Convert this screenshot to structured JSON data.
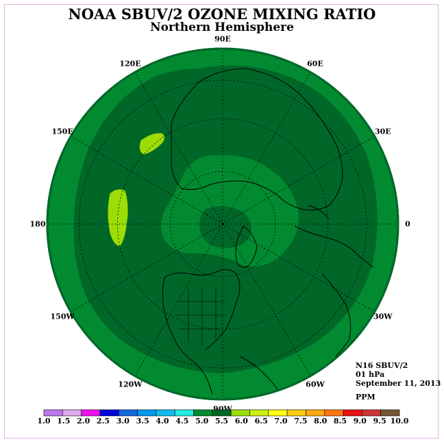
{
  "header": {
    "title": "NOAA SBUV/2 OZONE MIXING RATIO",
    "subtitle": "Northern Hemisphere"
  },
  "map": {
    "projection": "north polar stereographic",
    "longitude_labels": [
      "90E",
      "60E",
      "30E",
      "0",
      "30W",
      "60W",
      "90W",
      "120W",
      "150W",
      "180",
      "150E",
      "120E"
    ],
    "colors": {
      "band_5_0_to_5_5": "#028a30",
      "band_5_5_to_6_0": "#006728",
      "band_6_0_to_6_5": "#9bdd04",
      "coastline": "#000000",
      "graticule": "#000000"
    }
  },
  "info": {
    "satellite": "N16 SBUV/2",
    "level": "01 hPa",
    "date": "September 11, 2013",
    "units": "PPM"
  },
  "colorbar": {
    "ticks": [
      "1.0",
      "1.5",
      "2.0",
      "2.5",
      "3.0",
      "3.5",
      "4.0",
      "4.5",
      "5.0",
      "5.5",
      "6.0",
      "6.5",
      "7.0",
      "7.5",
      "8.0",
      "8.5",
      "9.0",
      "9.5",
      "10.0"
    ],
    "colors": [
      "#bb77ee",
      "#ddaaee",
      "#ee11ee",
      "#0000dd",
      "#1166dd",
      "#0099ee",
      "#11bbee",
      "#22eedd",
      "#028a30",
      "#006728",
      "#9bdd04",
      "#ccee11",
      "#ffff11",
      "#ffcc11",
      "#ffaa11",
      "#ff7711",
      "#ee1111",
      "#cc3333",
      "#775533"
    ]
  }
}
